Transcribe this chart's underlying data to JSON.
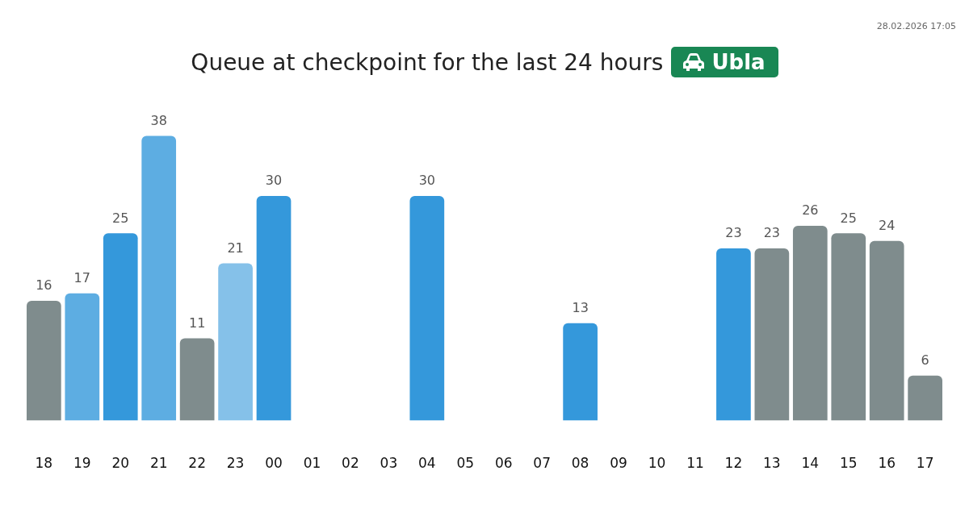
{
  "chart_data": {
    "type": "bar",
    "title": "Queue at checkpoint for the last 24 hours",
    "subtitle": "Ubla",
    "annotations": [
      "28.02.2026 17:05"
    ],
    "categories": [
      "18",
      "19",
      "20",
      "21",
      "22",
      "23",
      "00",
      "01",
      "02",
      "03",
      "04",
      "05",
      "06",
      "07",
      "08",
      "09",
      "10",
      "11",
      "12",
      "13",
      "14",
      "15",
      "16",
      "17"
    ],
    "values": [
      16,
      17,
      25,
      38,
      11,
      21,
      30,
      null,
      null,
      null,
      30,
      null,
      null,
      null,
      13,
      null,
      null,
      null,
      23,
      23,
      26,
      25,
      24,
      6
    ],
    "colors": [
      "#7f8c8d",
      "#5dade2",
      "#3498db",
      "#5dade2",
      "#7f8c8d",
      "#85c1e9",
      "#3498db",
      null,
      null,
      null,
      "#3498db",
      null,
      null,
      null,
      "#3498db",
      null,
      null,
      null,
      "#3498db",
      "#7f8c8d",
      "#7f8c8d",
      "#7f8c8d",
      "#7f8c8d",
      "#7f8c8d"
    ],
    "data_labels": true,
    "grid": false,
    "legend": false
  }
}
